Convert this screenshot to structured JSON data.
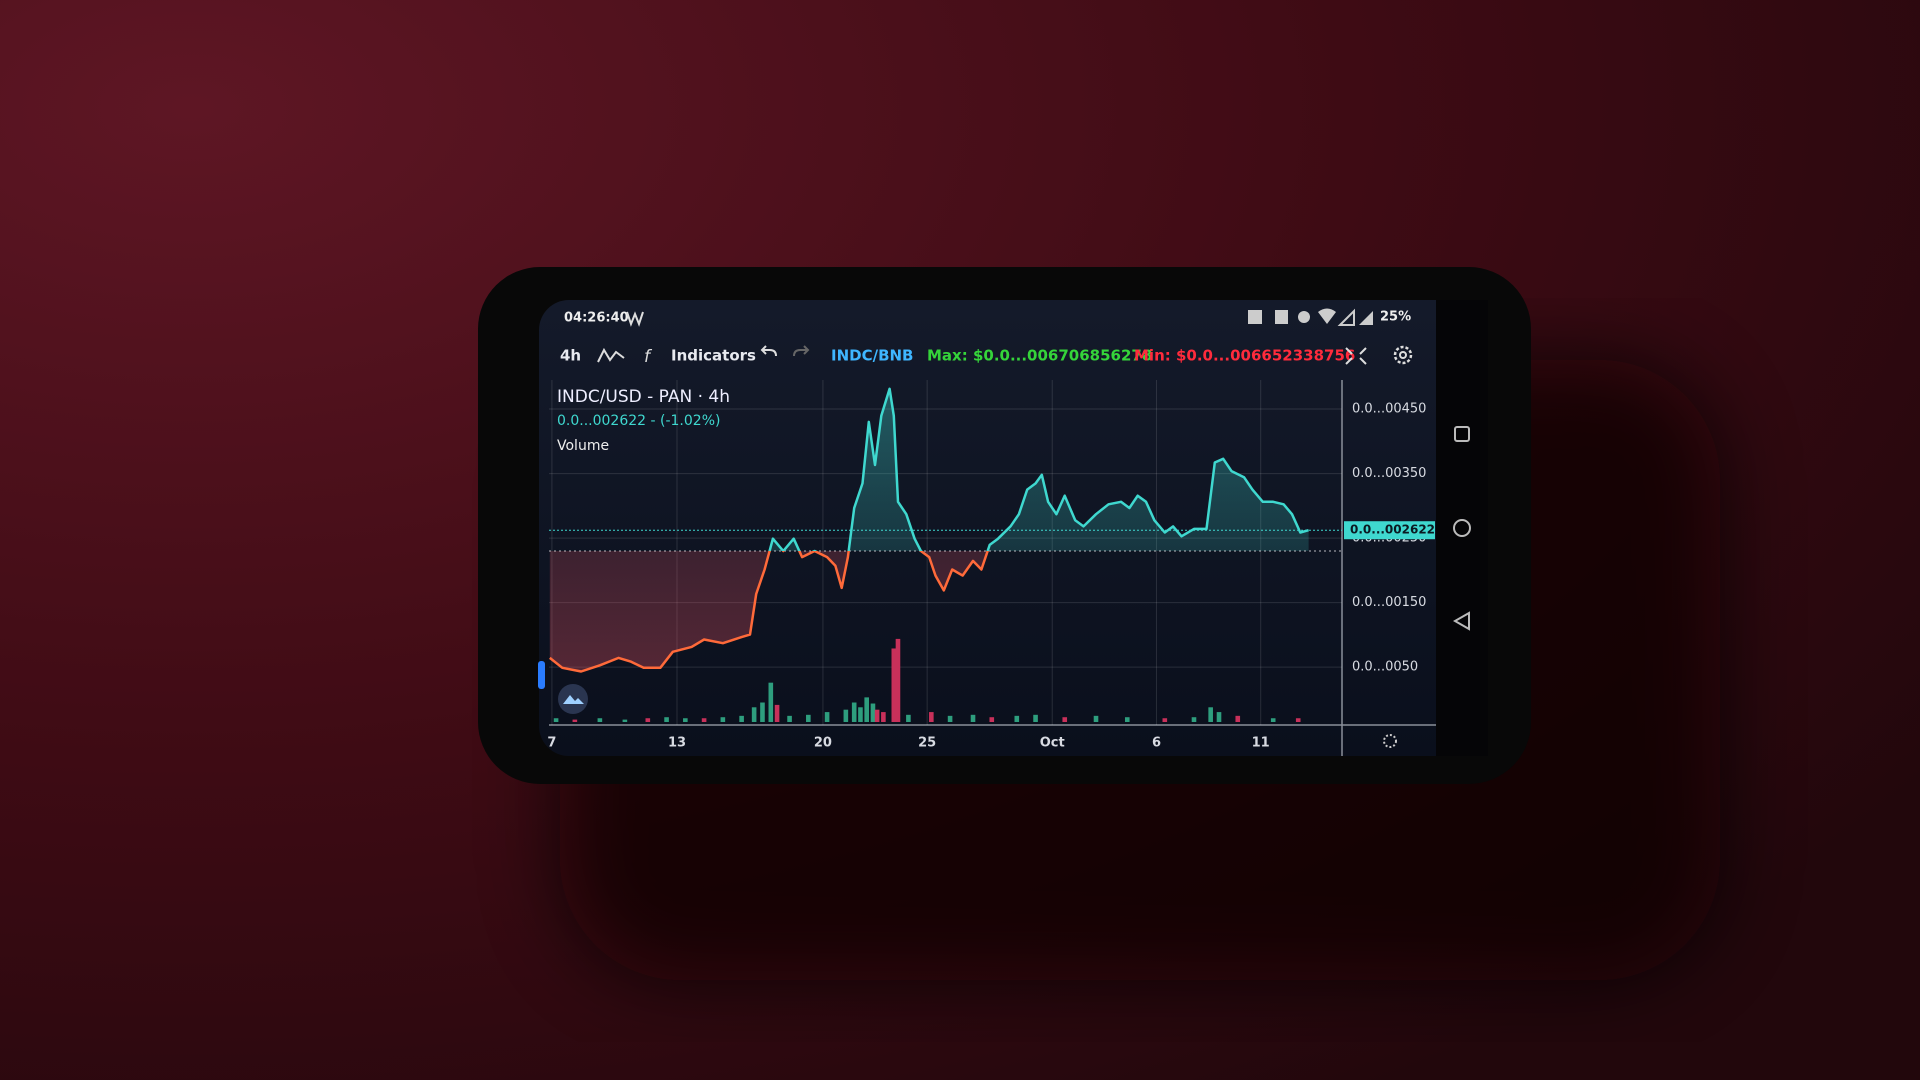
{
  "status_bar": {
    "time": "04:26:40",
    "battery": "25%"
  },
  "toolbar": {
    "interval": "4h",
    "indicators": "Indicators",
    "pair": "INDC/BNB",
    "max": "Max: $0.0...006706856278",
    "min": "Min: $0.0...006652338756"
  },
  "chart_data": {
    "type": "line",
    "title": "INDC/USD - PAN · 4h",
    "subtitle": "0.0...002622 - (-1.02%)",
    "x": [
      -0.1,
      0.5,
      1.4,
      2.3,
      3.2,
      3.8,
      4.4,
      5.2,
      5.8,
      6.7,
      7.3,
      8.2,
      9.1,
      9.5,
      9.8,
      10.2,
      10.6,
      11.1,
      11.6,
      12.0,
      12.6,
      13.2,
      13.6,
      13.9,
      14.2,
      14.5,
      14.9,
      15.2,
      15.5,
      15.8,
      16.2,
      16.4,
      16.6,
      17.0,
      17.4,
      17.7,
      18.1,
      18.4,
      18.8,
      19.2,
      19.7,
      20.2,
      20.6,
      21.0,
      21.4,
      22.0,
      22.4,
      22.8,
      23.2,
      23.5,
      23.8,
      24.2,
      24.6,
      25.1,
      25.5,
      26.1,
      26.7,
      27.3,
      27.7,
      28.1,
      28.5,
      28.9,
      29.4,
      29.8,
      30.2,
      30.8,
      31.4,
      31.8,
      32.2,
      32.6,
      33.2,
      33.6,
      34.1,
      34.6,
      35.1,
      35.5,
      35.9,
      36.3
    ],
    "values": [
      0.000643,
      0.00049,
      0.000433,
      0.000528,
      0.000643,
      0.000585,
      0.00049,
      0.00049,
      0.000738,
      0.000814,
      0.000928,
      0.000871,
      0.000966,
      0.001004,
      0.001633,
      0.002014,
      0.00249,
      0.0023,
      0.00249,
      0.002205,
      0.0023,
      0.002205,
      0.002071,
      0.001728,
      0.002205,
      0.002967,
      0.003348,
      0.0043,
      0.003633,
      0.004395,
      0.004814,
      0.004395,
      0.003062,
      0.002871,
      0.00249,
      0.0023,
      0.002205,
      0.001919,
      0.00169,
      0.002014,
      0.001919,
      0.002147,
      0.002014,
      0.002395,
      0.00249,
      0.002681,
      0.002871,
      0.003252,
      0.003348,
      0.003481,
      0.003062,
      0.002871,
      0.003157,
      0.002776,
      0.002681,
      0.002871,
      0.003024,
      0.003062,
      0.002967,
      0.003157,
      0.003062,
      0.002776,
      0.002586,
      0.002681,
      0.002528,
      0.002643,
      0.002643,
      0.003671,
      0.003729,
      0.003538,
      0.003443,
      0.003252,
      0.003062,
      0.003062,
      0.003024,
      0.002871,
      0.002586,
      0.002622
    ],
    "color_above": "#3fd8cf",
    "color_below": "#ff6a3a",
    "baseline": 0.0023,
    "last_price": {
      "value": 0.002622,
      "label": "0.0...002622"
    },
    "volume": {
      "name": "Volume",
      "axis": "y2",
      "x": [
        0.2,
        1.1,
        2.3,
        3.5,
        4.6,
        5.5,
        6.4,
        7.3,
        8.2,
        9.1,
        9.7,
        10.1,
        10.5,
        10.8,
        11.4,
        12.3,
        13.2,
        14.1,
        14.5,
        14.8,
        15.1,
        15.4,
        15.6,
        15.9,
        16.4,
        16.6,
        17.1,
        18.2,
        19.1,
        20.2,
        21.1,
        22.3,
        23.2,
        24.6,
        26.1,
        27.6,
        29.4,
        30.8,
        31.6,
        32.0,
        32.9,
        34.6,
        35.8
      ],
      "values": [
        1.1,
        0.7,
        1.1,
        0.7,
        1.1,
        1.4,
        1.1,
        1.1,
        1.4,
        1.8,
        4.3,
        5.7,
        11.5,
        5.0,
        1.8,
        2.1,
        2.9,
        3.6,
        5.7,
        4.3,
        7.2,
        5.4,
        3.6,
        2.9,
        21.5,
        24.3,
        2.1,
        2.9,
        1.8,
        2.1,
        1.4,
        1.8,
        2.1,
        1.4,
        1.8,
        1.4,
        1.1,
        1.4,
        4.3,
        2.9,
        1.8,
        1.1,
        1.1
      ],
      "colors": [
        "#2e9e7e",
        "#c8305a",
        "#2e9e7e",
        "#2e9e7e",
        "#c8305a",
        "#2e9e7e",
        "#2e9e7e",
        "#c8305a",
        "#2e9e7e",
        "#2e9e7e",
        "#2e9e7e",
        "#2e9e7e",
        "#2e9e7e",
        "#c8305a",
        "#2e9e7e",
        "#2e9e7e",
        "#2e9e7e",
        "#2e9e7e",
        "#2e9e7e",
        "#2e9e7e",
        "#2e9e7e",
        "#2e9e7e",
        "#c8305a",
        "#c8305a",
        "#c8305a",
        "#c8305a",
        "#2e9e7e",
        "#c8305a",
        "#2e9e7e",
        "#2e9e7e",
        "#c8305a",
        "#2e9e7e",
        "#2e9e7e",
        "#c8305a",
        "#2e9e7e",
        "#2e9e7e",
        "#c8305a",
        "#2e9e7e",
        "#2e9e7e",
        "#2e9e7e",
        "#c8305a",
        "#2e9e7e",
        "#c8305a"
      ]
    },
    "xlim": [
      -0.14,
      37.9
    ],
    "xticks": [
      {
        "value": 0,
        "label": "7"
      },
      {
        "value": 6,
        "label": "13"
      },
      {
        "value": 13,
        "label": "20"
      },
      {
        "value": 18,
        "label": "25"
      },
      {
        "value": 24,
        "label": "Oct"
      },
      {
        "value": 29,
        "label": "6"
      },
      {
        "value": 34,
        "label": "11"
      }
    ],
    "ylim": [
      -0.00035,
      0.00495
    ],
    "yticks": [
      {
        "value": 0.0045,
        "label": "0.0...00450"
      },
      {
        "value": 0.0035,
        "label": "0.0...00350"
      },
      {
        "value": 0.0025,
        "label": "0.0...00250"
      },
      {
        "value": 0.0015,
        "label": "0.0...00150"
      },
      {
        "value": 0.0005,
        "label": "0.0...0050"
      }
    ],
    "y2lim": [
      0,
      100
    ],
    "grid": true
  }
}
